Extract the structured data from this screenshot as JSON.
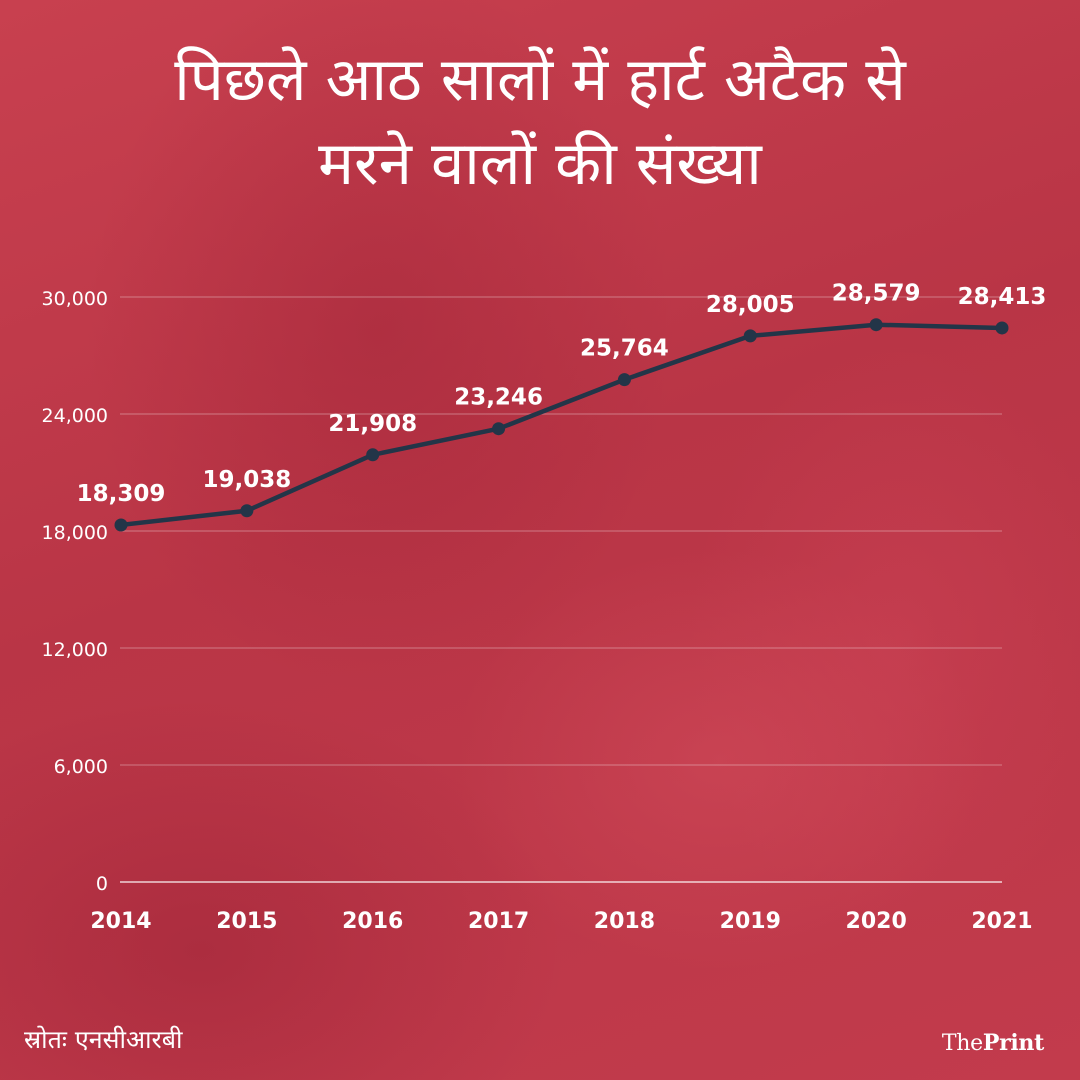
{
  "title_lines": [
    "पिछले आठ सालों में हार्ट अटैक से",
    "मरने वालों की संख्या"
  ],
  "source": "स्रोतः एनसीआरबी",
  "logo": {
    "part1": "The",
    "part2": "Print"
  },
  "colors": {
    "line": "#233548",
    "text": "#ffffff",
    "grid": "rgba(255,255,255,0.28)",
    "background": "#c23a4b"
  },
  "chart_data": {
    "type": "line",
    "title": "पिछले आठ सालों में हार्ट अटैक से मरने वालों की संख्या",
    "x": [
      "2014",
      "2015",
      "2016",
      "2017",
      "2018",
      "2019",
      "2020",
      "2021"
    ],
    "series": [
      {
        "values": [
          18309,
          19038,
          21908,
          23246,
          25764,
          28005,
          28579,
          28413
        ]
      }
    ],
    "data_labels": [
      "18,309",
      "19,038",
      "21,908",
      "23,246",
      "25,764",
      "28,005",
      "28,579",
      "28,413"
    ],
    "yticks": [
      0,
      6000,
      12000,
      18000,
      24000,
      30000
    ],
    "ytick_labels": [
      "0",
      "6,000",
      "12,000",
      "18,000",
      "24,000",
      "30,000"
    ],
    "ylim": [
      0,
      30000
    ],
    "grid": true,
    "legend": "none"
  }
}
